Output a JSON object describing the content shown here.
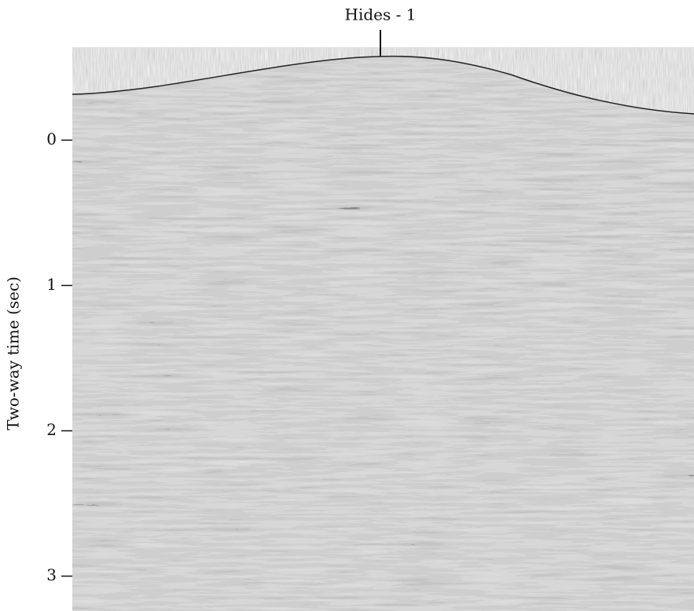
{
  "chart_data": {
    "type": "seismic",
    "annotation": "Hides - 1",
    "y_label": "Two-way time (sec)",
    "ylim": [
      3.24,
      -0.64
    ],
    "yticks": [
      0,
      1,
      2,
      3
    ]
  }
}
